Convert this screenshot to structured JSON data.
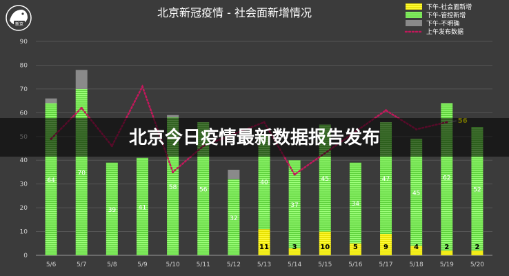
{
  "chart_data": {
    "type": "bar",
    "title": "北京新冠疫情 - 社会面新增情况",
    "overlay_banner": "北京今日疫情最新数据报告发布",
    "logo_text": "新京",
    "categories": [
      "5/6",
      "5/7",
      "5/8",
      "5/9",
      "5/10",
      "5/11",
      "5/12",
      "5/13",
      "5/14",
      "5/15",
      "5/16",
      "5/17",
      "5/18",
      "5/19",
      "5/20"
    ],
    "ylim": [
      0,
      90
    ],
    "yticks": [
      0,
      10,
      20,
      30,
      40,
      50,
      60,
      70,
      80,
      90
    ],
    "grid": true,
    "legend_position": "top-right",
    "series": [
      {
        "name": "下午-社会面新增",
        "kind": "bar-stack",
        "color": "#f7f200",
        "values": [
          0,
          0,
          0,
          0,
          0,
          0,
          0,
          11,
          3,
          10,
          5,
          9,
          4,
          2,
          2
        ],
        "labels": [
          "",
          "",
          "",
          "",
          "",
          "",
          "",
          "11",
          "3",
          "10",
          "5",
          "9",
          "4",
          "2",
          "2"
        ]
      },
      {
        "name": "下午-管控新增",
        "kind": "bar-stack",
        "color": "#7cf25a",
        "values": [
          64,
          70,
          39,
          41,
          58,
          56,
          32,
          40,
          37,
          45,
          34,
          47,
          45,
          62,
          52
        ],
        "labels": [
          "64",
          "70",
          "39",
          "41",
          "58",
          "56",
          "32",
          "40",
          "37",
          "45",
          "34",
          "47",
          "45",
          "62",
          "52"
        ]
      },
      {
        "name": "下午-不明确",
        "kind": "bar-stack",
        "color": "#8a8a8a",
        "values": [
          2,
          8,
          0,
          0,
          1,
          0,
          4,
          0,
          0,
          0,
          0,
          0,
          0,
          0,
          0
        ]
      },
      {
        "name": "上午发布数据",
        "kind": "line",
        "color": "#c2185b",
        "values": [
          49,
          62,
          46,
          71,
          35,
          46,
          null,
          56,
          34,
          null,
          null,
          61,
          53,
          56,
          null
        ]
      }
    ],
    "annotation": {
      "category": "5/19",
      "value": 56,
      "text": "56"
    }
  }
}
